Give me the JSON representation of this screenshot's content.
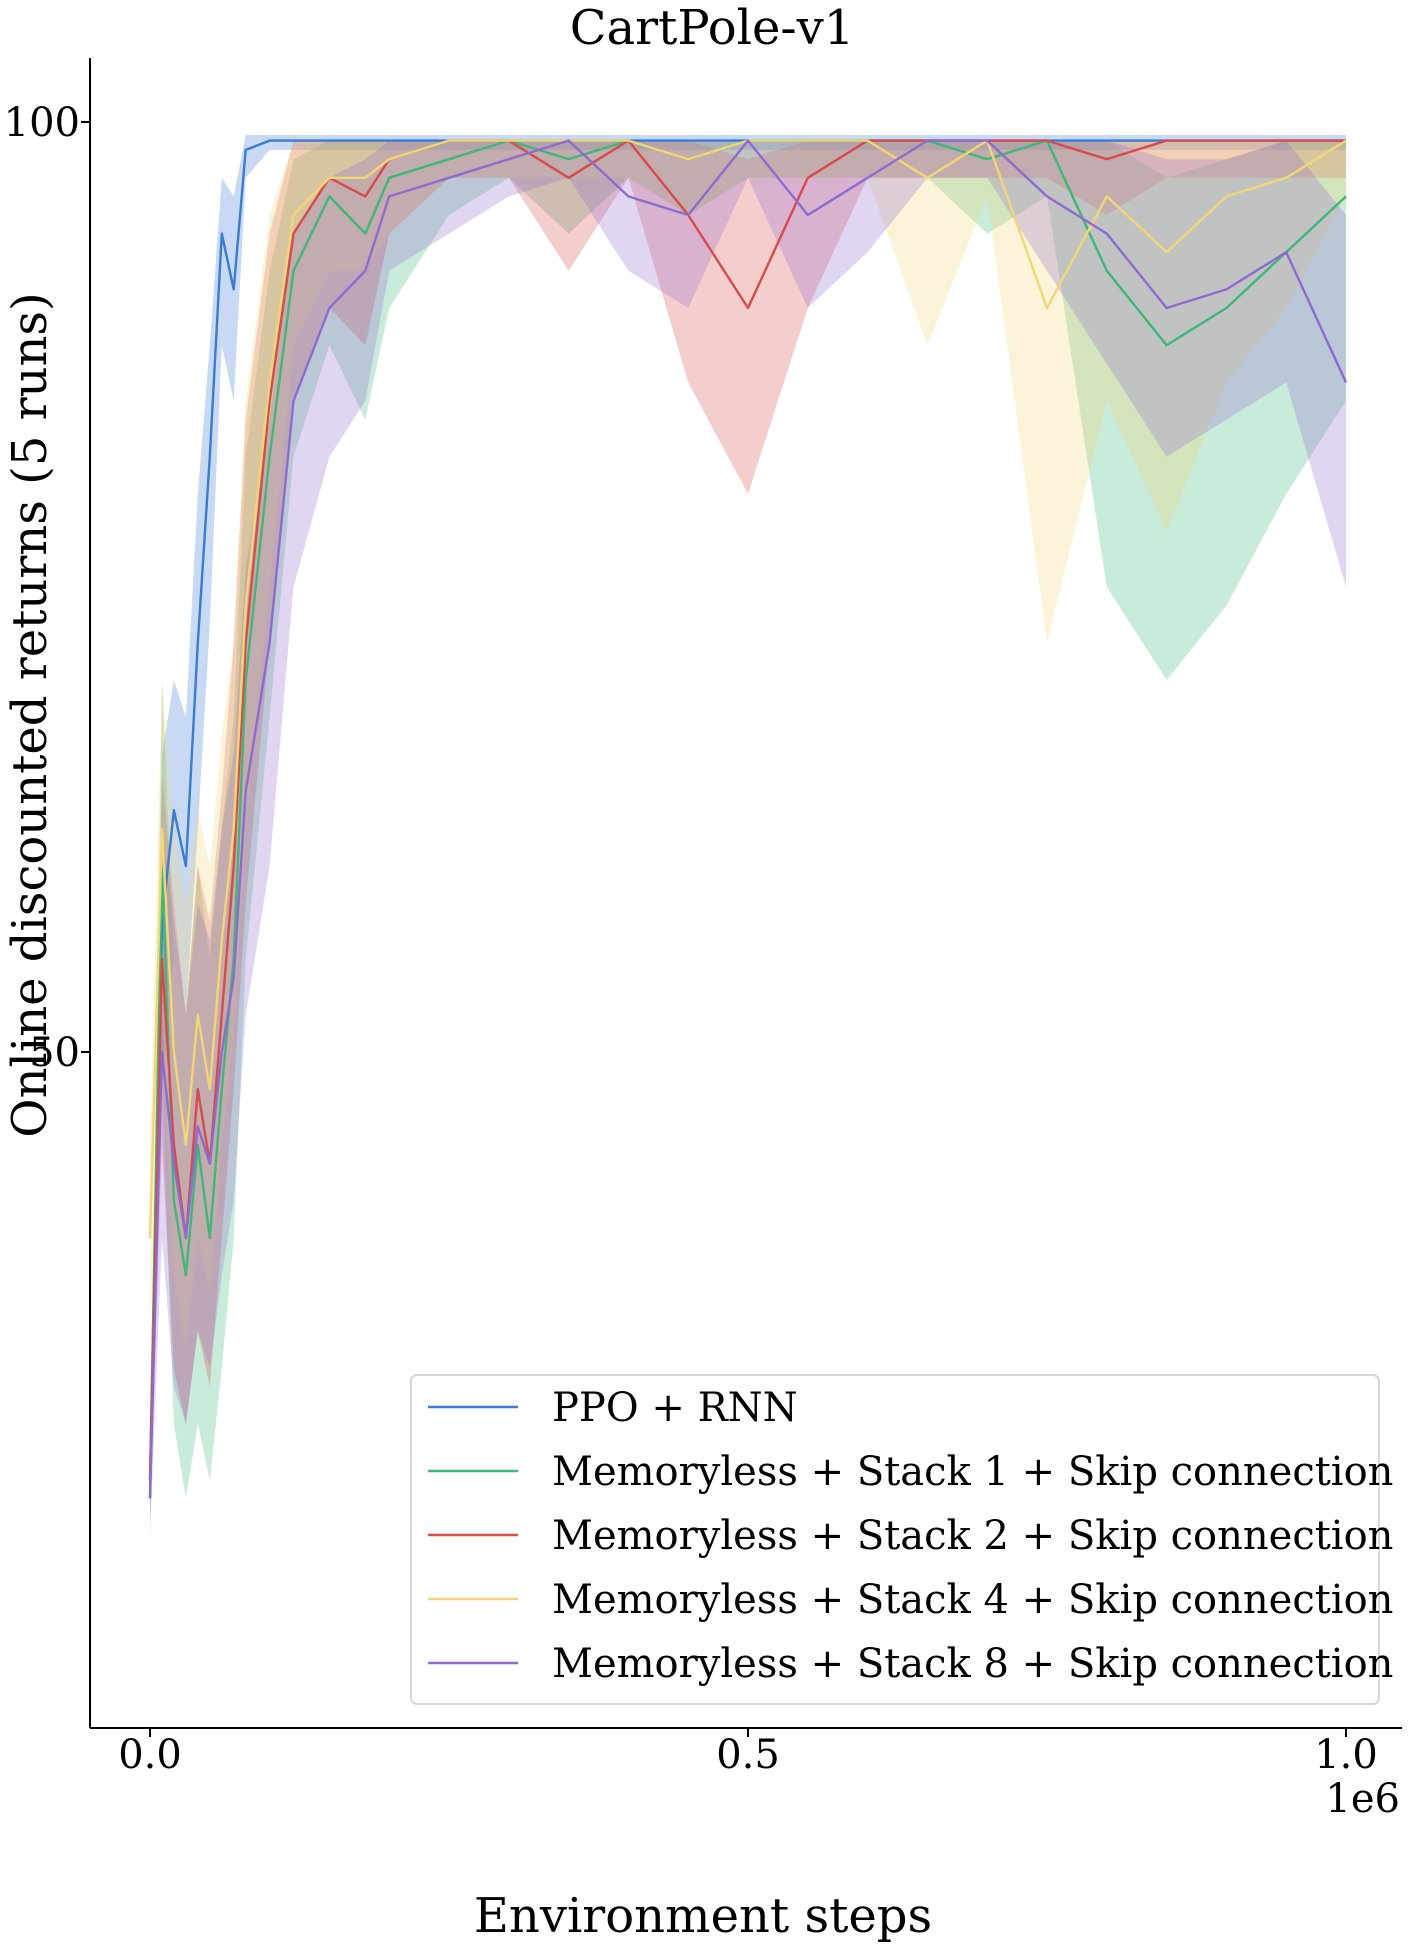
{
  "chart_data": {
    "type": "line",
    "title": "CartPole-v1",
    "xlabel": "Environment steps",
    "ylabel": "Online discounted returns (5 runs)",
    "x_offset_label": "1e6",
    "xlim": [
      -0.05,
      1.05
    ],
    "ylim": [
      22,
      103.5
    ],
    "xticks": [
      0.0,
      0.5,
      1.0
    ],
    "xtick_labels": [
      "0.0",
      "0.5",
      "1.0"
    ],
    "yticks": [
      100,
      50
    ],
    "ytick_labels": [
      "100",
      "50"
    ],
    "legend_position": "lower-right",
    "grid": false,
    "x": [
      0.0,
      0.01,
      0.02,
      0.03,
      0.04,
      0.05,
      0.06,
      0.07,
      0.08,
      0.1,
      0.12,
      0.15,
      0.18,
      0.2,
      0.25,
      0.3,
      0.35,
      0.4,
      0.45,
      0.5,
      0.55,
      0.6,
      0.65,
      0.7,
      0.75,
      0.8,
      0.85,
      0.9,
      0.95,
      1.0
    ],
    "series": [
      {
        "name": "PPO + RNN",
        "color": "#3a7bd5",
        "values": [
          26,
          57,
          63,
          60,
          72,
          82,
          94,
          91,
          98.5,
          99,
          99,
          99,
          99,
          99,
          99,
          99,
          99,
          99,
          99,
          99,
          99,
          99,
          99,
          99,
          99,
          99,
          99,
          99,
          99,
          99
        ],
        "upper": [
          28,
          66,
          70,
          68,
          80,
          88,
          97,
          96,
          99.3,
          99.3,
          99.3,
          99.3,
          99.3,
          99.3,
          99.3,
          99.3,
          99.3,
          99.3,
          99.3,
          99.3,
          99.3,
          99.3,
          99.3,
          99.3,
          99.3,
          99.3,
          99.3,
          99.3,
          99.3,
          99.3
        ],
        "lower": [
          25,
          48,
          55,
          52,
          62,
          73,
          88,
          85,
          97,
          98.5,
          98.5,
          98.5,
          98.5,
          98.5,
          98.5,
          98.5,
          98.5,
          98.5,
          98.5,
          98.5,
          98.5,
          98.5,
          98.5,
          98.5,
          98.5,
          98.5,
          98.5,
          98.5,
          98.5,
          98.5
        ]
      },
      {
        "name": "Memoryless + Stack 1 + Skip connection",
        "color": "#3cb878",
        "values": [
          27,
          60,
          42,
          38,
          45,
          40,
          48,
          55,
          70,
          82,
          92,
          96,
          94,
          97,
          98,
          99,
          98,
          99,
          98,
          99,
          99,
          99,
          99,
          98,
          99,
          92,
          88,
          90,
          93,
          96
        ],
        "upper": [
          29,
          70,
          55,
          52,
          60,
          55,
          62,
          68,
          82,
          92,
          98,
          99,
          99,
          99,
          99,
          99,
          99,
          99,
          99,
          99,
          99,
          99,
          99,
          99,
          99,
          99,
          97,
          98,
          99,
          99
        ],
        "lower": [
          25,
          48,
          30,
          26,
          30,
          27,
          33,
          40,
          55,
          68,
          82,
          88,
          84,
          90,
          95,
          97,
          94,
          97,
          95,
          97,
          97,
          97,
          97,
          94,
          96,
          75,
          70,
          74,
          80,
          85
        ]
      },
      {
        "name": "Memoryless + Stack 2 + Skip connection",
        "color": "#d94a4a",
        "values": [
          27,
          55,
          45,
          40,
          48,
          44,
          52,
          60,
          72,
          85,
          94,
          97,
          96,
          98,
          99,
          99,
          97,
          99,
          95,
          90,
          97,
          99,
          99,
          99,
          99,
          98,
          99,
          99,
          99,
          99
        ],
        "upper": [
          29,
          65,
          58,
          52,
          60,
          57,
          64,
          72,
          84,
          94,
          99,
          99,
          99,
          99,
          99,
          99,
          99,
          99,
          99,
          98,
          99,
          99,
          99,
          99,
          99,
          99,
          99,
          99,
          99,
          99
        ],
        "lower": [
          25,
          45,
          33,
          30,
          35,
          32,
          40,
          48,
          58,
          72,
          85,
          90,
          88,
          94,
          97,
          97,
          92,
          97,
          86,
          80,
          90,
          97,
          97,
          97,
          97,
          95,
          97,
          97,
          97,
          97
        ]
      },
      {
        "name": "Memoryless + Stack 4 + Skip connection",
        "color": "#f2d675",
        "values": [
          40,
          62,
          50,
          45,
          52,
          48,
          56,
          62,
          74,
          86,
          95,
          97,
          97,
          98,
          99,
          99,
          99,
          99,
          98,
          99,
          99,
          99,
          97,
          99,
          90,
          96,
          93,
          96,
          97,
          99
        ],
        "upper": [
          45,
          70,
          62,
          58,
          63,
          60,
          67,
          72,
          85,
          95,
          99,
          99,
          99,
          99,
          99,
          99,
          99,
          99,
          99,
          99,
          99,
          99,
          99,
          99,
          99,
          99,
          99,
          99,
          99,
          99
        ],
        "lower": [
          35,
          52,
          38,
          34,
          40,
          37,
          45,
          51,
          62,
          75,
          88,
          92,
          92,
          94,
          97,
          97,
          97,
          97,
          95,
          97,
          97,
          97,
          88,
          96,
          72,
          85,
          78,
          86,
          90,
          96
        ]
      },
      {
        "name": "Memoryless + Stack 8 + Skip connection",
        "color": "#8e6bd1",
        "values": [
          26,
          50,
          44,
          40,
          46,
          44,
          50,
          54,
          64,
          72,
          85,
          90,
          92,
          96,
          97,
          98,
          99,
          96,
          95,
          99,
          95,
          97,
          99,
          99,
          96,
          94,
          90,
          91,
          93,
          86
        ],
        "upper": [
          28,
          62,
          57,
          52,
          58,
          56,
          62,
          66,
          76,
          84,
          94,
          97,
          98,
          99,
          99,
          99,
          99,
          99,
          99,
          99,
          99,
          99,
          99,
          99,
          99,
          99,
          98,
          98,
          99,
          95
        ],
        "lower": [
          24,
          40,
          32,
          30,
          35,
          33,
          38,
          42,
          52,
          60,
          75,
          82,
          85,
          92,
          94,
          96,
          97,
          92,
          90,
          97,
          90,
          93,
          97,
          97,
          92,
          87,
          82,
          84,
          86,
          75
        ]
      }
    ]
  }
}
